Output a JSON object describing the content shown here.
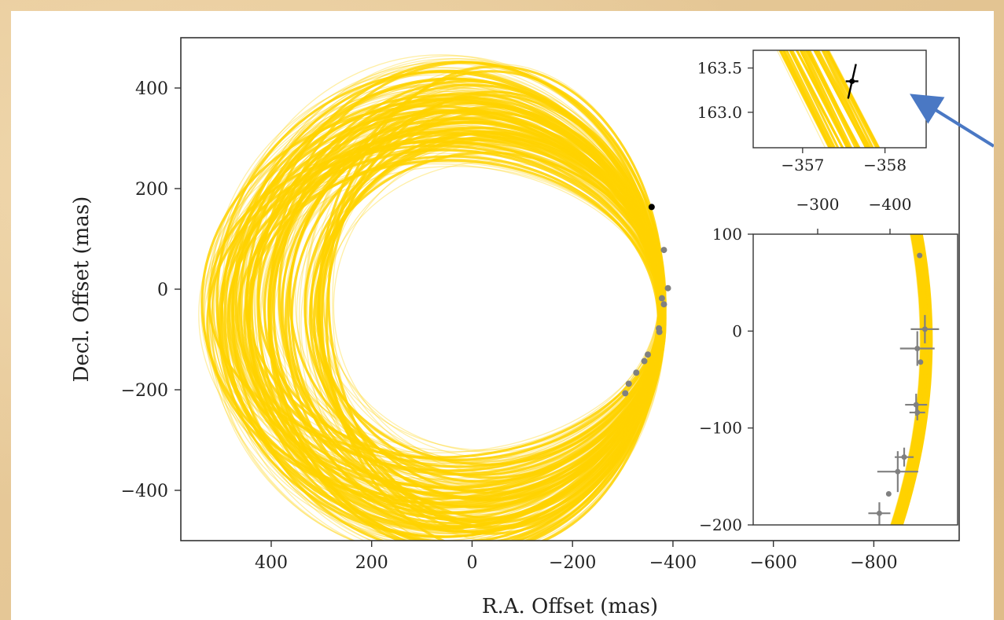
{
  "chart_data": [
    {
      "name": "main-orbit-plot",
      "type": "scatter",
      "xlabel": "R.A. Offset (mas)",
      "ylabel": "Decl. Offset (mas)",
      "xlim": [
        580,
        -970
      ],
      "ylim": [
        -500,
        500
      ],
      "xticks": [
        400,
        200,
        0,
        -200,
        -400,
        -600,
        -800
      ],
      "yticks": [
        400,
        200,
        0,
        -200,
        -400
      ],
      "xtick_labels": [
        "400",
        "200",
        "0",
        "−200",
        "−400",
        "−600",
        "−800"
      ],
      "ytick_labels": [
        "400",
        "200",
        "0",
        "−200",
        "−400"
      ],
      "orbit_color": "#ffd200",
      "highlight_point": {
        "x": -357.6,
        "y": 163.4
      },
      "points": [
        {
          "x": -382,
          "y": 78
        },
        {
          "x": -390,
          "y": 2
        },
        {
          "x": -378,
          "y": -18
        },
        {
          "x": -382,
          "y": -30
        },
        {
          "x": -372,
          "y": -78
        },
        {
          "x": -373,
          "y": -85
        },
        {
          "x": -350,
          "y": -130
        },
        {
          "x": -343,
          "y": -143
        },
        {
          "x": -327,
          "y": -166
        },
        {
          "x": -312,
          "y": -188
        },
        {
          "x": -305,
          "y": -207
        }
      ]
    },
    {
      "name": "zoom-inset",
      "type": "scatter",
      "xlim": [
        -356.4,
        -358.5
      ],
      "ylim": [
        162.6,
        163.7
      ],
      "xticks": [
        -357,
        -358
      ],
      "yticks": [
        163.5,
        163.0
      ],
      "xtick_labels": [
        "−357",
        "−358"
      ],
      "ytick_labels": [
        "163.5",
        "163.0"
      ],
      "point": {
        "x": -357.6,
        "y": 163.35
      }
    },
    {
      "name": "arc-inset",
      "type": "scatter",
      "xlim": [
        -250,
        -950
      ],
      "ylim": [
        -200,
        100
      ],
      "xticks": [
        -600,
        -800
      ],
      "yticks": [
        100,
        0,
        -100,
        -200
      ],
      "top_xticks": [
        -300,
        -400
      ],
      "top_xtick_labels": [
        "−300",
        "−400"
      ],
      "ytick_labels": [
        "100",
        "0",
        "−100",
        "−200"
      ],
      "points": [
        {
          "x": -820,
          "y": 78,
          "err": 0
        },
        {
          "x": -838,
          "y": 2,
          "err": 18
        },
        {
          "x": -812,
          "y": -18,
          "err": 22
        },
        {
          "x": -823,
          "y": -32,
          "err": 0
        },
        {
          "x": -808,
          "y": -76,
          "err": 14
        },
        {
          "x": -812,
          "y": -84,
          "err": 10
        },
        {
          "x": -767,
          "y": -130,
          "err": 12
        },
        {
          "x": -745,
          "y": -145,
          "err": 26
        },
        {
          "x": -714,
          "y": -168,
          "err": 0
        },
        {
          "x": -682,
          "y": -188,
          "err": 14
        }
      ]
    }
  ]
}
